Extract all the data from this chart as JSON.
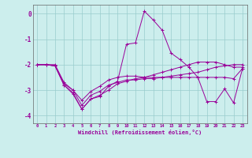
{
  "background_color": "#cceeed",
  "grid_color": "#99cccc",
  "line_color": "#990099",
  "xlim": [
    -0.5,
    23.5
  ],
  "ylim": [
    -4.3,
    0.35
  ],
  "yticks": [
    0,
    -1,
    -2,
    -3,
    -4
  ],
  "xlabel": "Windchill (Refroidissement éolien,°C)",
  "series": [
    [
      -2.0,
      -2.0,
      -2.05,
      -2.8,
      -3.15,
      -3.75,
      -3.35,
      -3.2,
      -3.0,
      -2.75,
      -2.65,
      -2.55,
      -2.5,
      -2.4,
      -2.3,
      -2.2,
      -2.1,
      -2.0,
      -1.9,
      -1.9,
      -1.9,
      -2.0,
      -2.1,
      -2.1
    ],
    [
      -2.0,
      -2.0,
      -2.05,
      -2.8,
      -3.1,
      -3.75,
      -3.35,
      -3.25,
      -2.85,
      -2.65,
      -1.2,
      -1.15,
      0.1,
      -0.25,
      -0.65,
      -1.55,
      -1.8,
      -2.1,
      -2.5,
      -3.45,
      -3.45,
      -2.95,
      -3.5,
      -2.15
    ],
    [
      -2.0,
      -2.0,
      -2.0,
      -2.7,
      -3.0,
      -3.4,
      -3.05,
      -2.85,
      -2.6,
      -2.5,
      -2.45,
      -2.45,
      -2.5,
      -2.5,
      -2.5,
      -2.5,
      -2.5,
      -2.5,
      -2.5,
      -2.5,
      -2.5,
      -2.5,
      -2.55,
      -2.15
    ],
    [
      -2.0,
      -2.0,
      -2.05,
      -2.75,
      -3.0,
      -3.6,
      -3.2,
      -3.05,
      -2.8,
      -2.7,
      -2.6,
      -2.6,
      -2.55,
      -2.55,
      -2.5,
      -2.45,
      -2.4,
      -2.35,
      -2.3,
      -2.2,
      -2.1,
      -2.05,
      -2.0,
      -2.0
    ]
  ]
}
